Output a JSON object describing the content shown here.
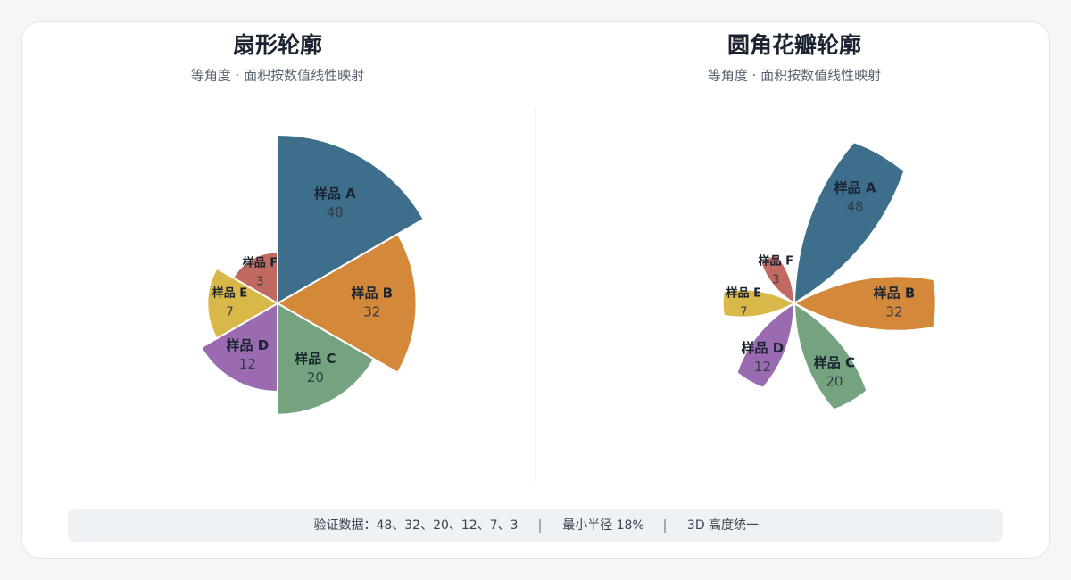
{
  "chart_data": [
    {
      "type": "sector",
      "title": "扇形轮廓",
      "subtitle": "等角度 · 面积按数值线性映射",
      "categories": [
        "样品 A",
        "样品 B",
        "样品 C",
        "样品 D",
        "样品 E",
        "样品 F"
      ],
      "values": [
        48,
        32,
        20,
        12,
        7,
        3
      ],
      "colors": [
        "#3d6e8c",
        "#d4893a",
        "#76a37f",
        "#9a6bb0",
        "#d9b84a",
        "#c06a62"
      ]
    },
    {
      "type": "petal",
      "title": "圆角花瓣轮廓",
      "subtitle": "等角度 · 面积按数值线性映射",
      "categories": [
        "样品 A",
        "样品 B",
        "样品 C",
        "样品 D",
        "样品 E",
        "样品 F"
      ],
      "values": [
        48,
        32,
        20,
        12,
        7,
        3
      ],
      "colors": [
        "#3d6e8c",
        "#d4893a",
        "#76a37f",
        "#9a6bb0",
        "#d9b84a",
        "#c06a62"
      ]
    }
  ],
  "footer": [
    "验证数据：48、32、20、12、7、3",
    "最小半径 18%",
    "3D 高度统一"
  ]
}
